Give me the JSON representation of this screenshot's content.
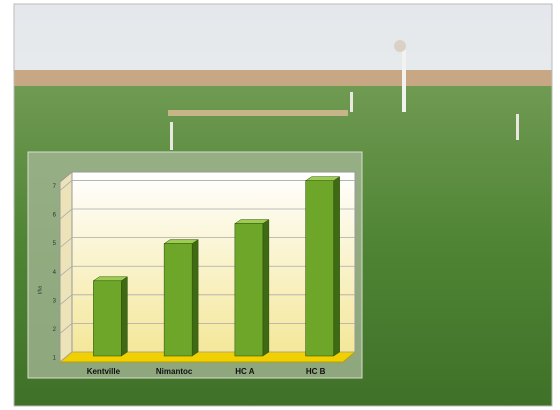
{
  "chart_data": {
    "type": "bar3d",
    "y_label": "t/ha",
    "categories": [
      "Kentville",
      "Nimantoc",
      "HC A",
      "HC B"
    ],
    "values": [
      3.7,
      5.0,
      5.7,
      7.2
    ],
    "color": "#6ea62a",
    "ylim": [
      1,
      7.4
    ],
    "yticks": [
      1,
      2,
      3,
      4,
      5,
      6,
      7
    ],
    "grid": true
  }
}
